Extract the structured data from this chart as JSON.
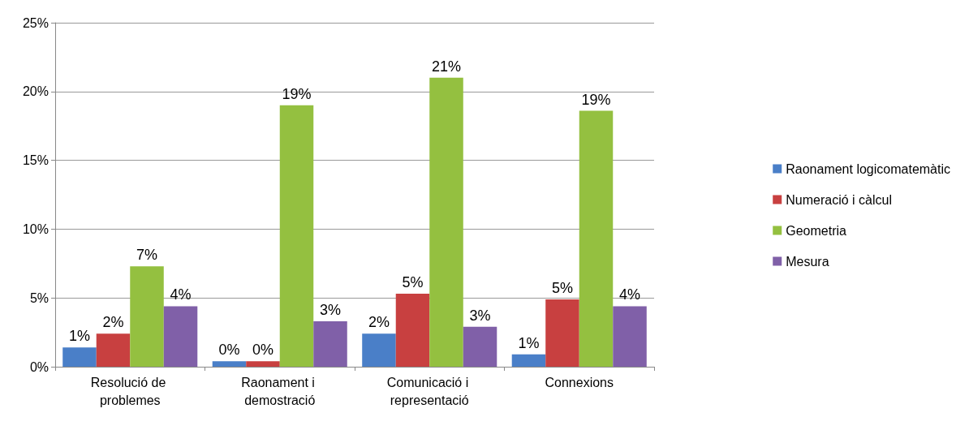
{
  "chart_data": {
    "type": "bar",
    "categories": [
      "Resolució de problemes",
      "Raonament i demostració",
      "Comunicació i representació",
      "Connexions"
    ],
    "series": [
      {
        "name": "Raonament logicomatemàtic",
        "color": "#4a7fc8",
        "values": [
          1.4,
          0.4,
          2.4,
          0.9
        ],
        "value_labels": [
          "1%",
          "0%",
          "2%",
          "1%"
        ]
      },
      {
        "name": "Numeració i càlcul",
        "color": "#c84040",
        "values": [
          2.4,
          0.4,
          5.3,
          4.9
        ],
        "value_labels": [
          "2%",
          "0%",
          "5%",
          "5%"
        ]
      },
      {
        "name": "Geometria",
        "color": "#94c040",
        "values": [
          7.3,
          19.0,
          21.0,
          18.6
        ],
        "value_labels": [
          "7%",
          "19%",
          "21%",
          "19%"
        ]
      },
      {
        "name": "Mesura",
        "color": "#8060a8",
        "values": [
          4.4,
          3.3,
          2.9,
          4.4
        ],
        "value_labels": [
          "4%",
          "3%",
          "3%",
          "4%"
        ]
      }
    ],
    "ylim": [
      0,
      25
    ],
    "yticks": [
      {
        "value": 0,
        "label": "0%"
      },
      {
        "value": 5,
        "label": "5%"
      },
      {
        "value": 10,
        "label": "10%"
      },
      {
        "value": 15,
        "label": "15%"
      },
      {
        "value": 20,
        "label": "20%"
      },
      {
        "value": 25,
        "label": "25%"
      }
    ],
    "grid": "y",
    "legend": "right"
  }
}
